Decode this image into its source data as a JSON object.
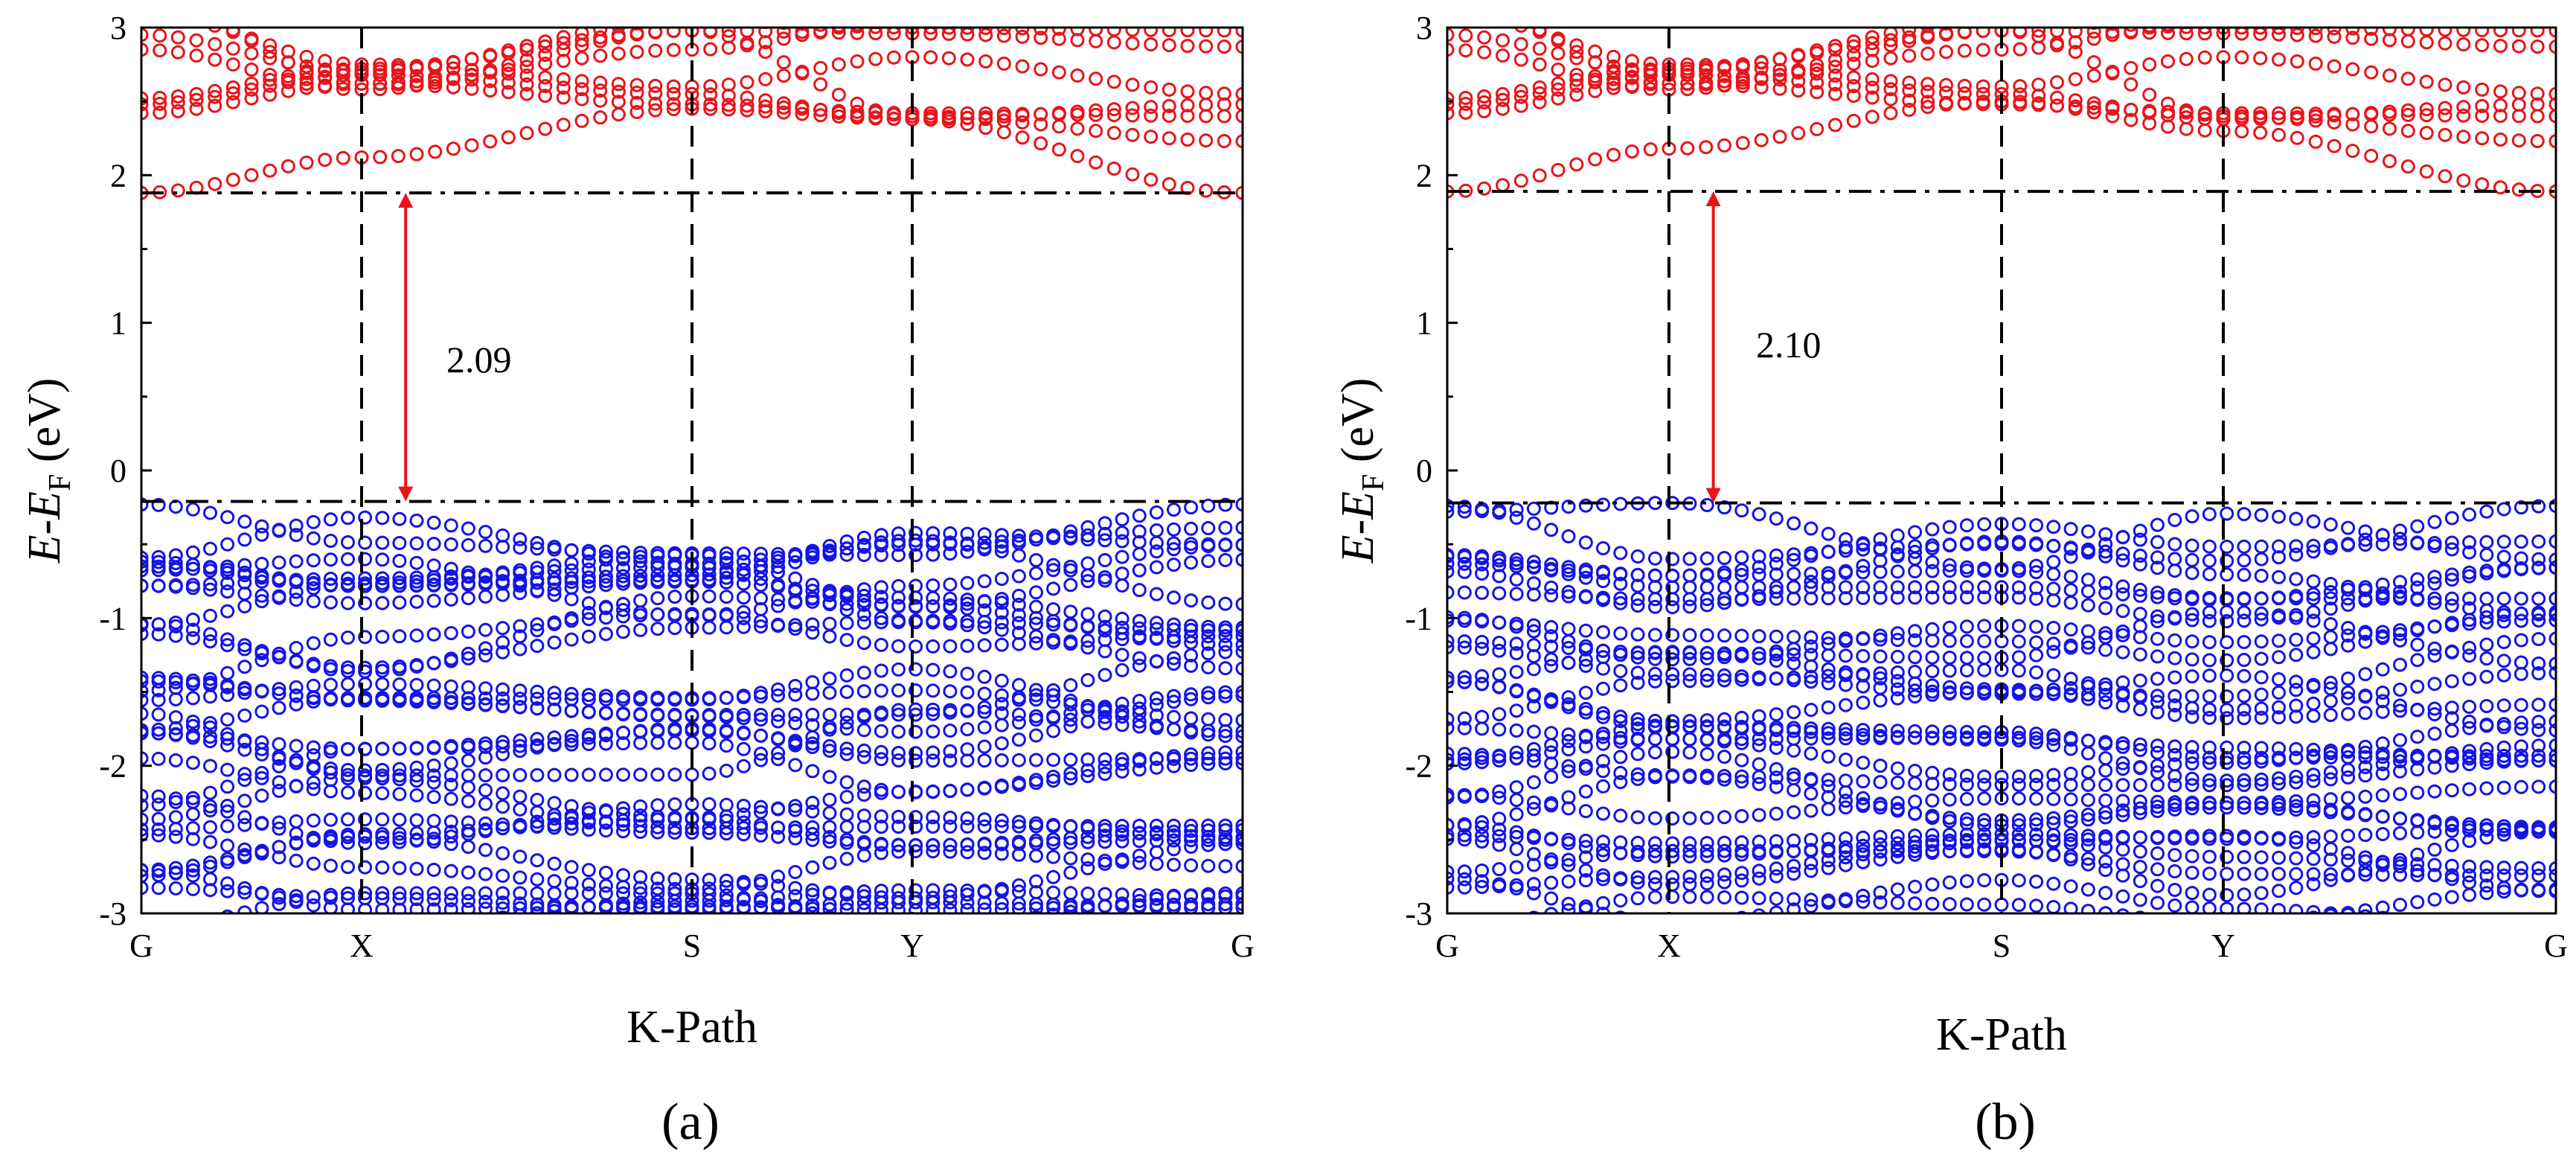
{
  "chart_data": [
    {
      "type": "scatter",
      "panel_label": "(a)",
      "xlabel": "K-Path",
      "ylabel": {
        "main": "E-E",
        "sub": "F",
        "unit": " (eV)"
      },
      "ylim": [
        -3,
        3
      ],
      "y_ticks": [
        "3",
        "2",
        "1",
        "0",
        "-1",
        "-2",
        "-3"
      ],
      "k_points": [
        "G",
        "X",
        "S",
        "Y",
        "G"
      ],
      "k_positions": [
        0,
        0.2,
        0.5,
        0.7,
        1.0
      ],
      "cbm": 1.88,
      "vbm": -0.21,
      "gap_label": "2.09",
      "gap_arrow_k": 0.24,
      "series": [
        {
          "name": "conduction bands",
          "color": "#e8141a"
        },
        {
          "name": "valence bands",
          "color": "#1414e6"
        }
      ]
    },
    {
      "type": "scatter",
      "panel_label": "(b)",
      "xlabel": "K-Path",
      "ylabel": {
        "main": "E-E",
        "sub": "F",
        "unit": " (eV)"
      },
      "ylim": [
        -3,
        3
      ],
      "y_ticks": [
        "3",
        "2",
        "1",
        "0",
        "-1",
        "-2",
        "-3"
      ],
      "k_points": [
        "G",
        "X",
        "S",
        "Y",
        "G"
      ],
      "k_positions": [
        0,
        0.2,
        0.5,
        0.7,
        1.0
      ],
      "cbm": 1.89,
      "vbm": -0.22,
      "gap_label": "2.10",
      "gap_arrow_k": 0.24,
      "series": [
        {
          "name": "conduction bands",
          "color": "#e8141a"
        },
        {
          "name": "valence bands",
          "color": "#1414e6"
        }
      ]
    }
  ]
}
